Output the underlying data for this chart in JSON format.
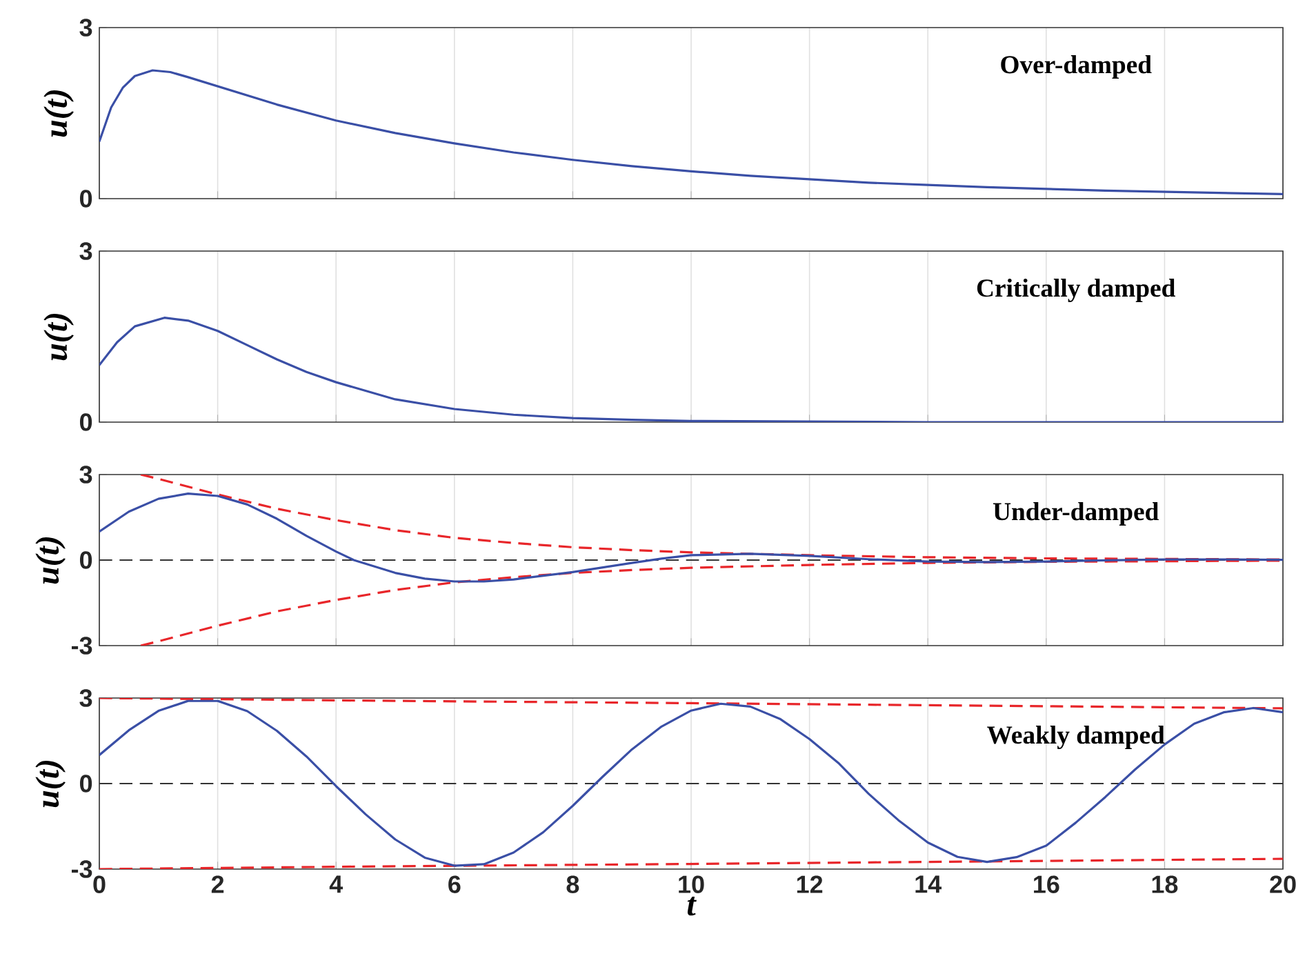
{
  "chart_data": [
    {
      "type": "line",
      "ylabel": "u(t)",
      "annotations": [
        "Over-damped"
      ],
      "xlim": [
        0,
        20
      ],
      "ylim": [
        0,
        3
      ],
      "xticks": [
        0,
        2,
        4,
        6,
        8,
        10,
        12,
        14,
        16,
        18,
        20
      ],
      "yticks": [
        0,
        3
      ],
      "grid": "x",
      "tick_labels": "y",
      "series": [
        {
          "color": "#3a4fa6",
          "line_style": "solid",
          "x": [
            0,
            0.2,
            0.4,
            0.6,
            0.9,
            1.2,
            1.5,
            2,
            3,
            4,
            5,
            6,
            7,
            8,
            9,
            10,
            11,
            12,
            13,
            14,
            15,
            16,
            17,
            18,
            19,
            20
          ],
          "values": [
            1.0,
            1.6,
            1.95,
            2.15,
            2.25,
            2.22,
            2.13,
            1.97,
            1.65,
            1.37,
            1.15,
            0.97,
            0.81,
            0.68,
            0.57,
            0.48,
            0.4,
            0.34,
            0.28,
            0.24,
            0.2,
            0.17,
            0.14,
            0.12,
            0.1,
            0.08
          ]
        }
      ]
    },
    {
      "type": "line",
      "ylabel": "u(t)",
      "annotations": [
        "Critically damped"
      ],
      "xlim": [
        0,
        20
      ],
      "ylim": [
        0,
        3
      ],
      "xticks": [
        0,
        2,
        4,
        6,
        8,
        10,
        12,
        14,
        16,
        18,
        20
      ],
      "yticks": [
        0,
        3
      ],
      "grid": "x",
      "tick_labels": "y",
      "series": [
        {
          "color": "#3a4fa6",
          "line_style": "solid",
          "x": [
            0,
            0.3,
            0.6,
            1.1,
            1.5,
            2,
            2.5,
            3,
            3.5,
            4,
            5,
            6,
            7,
            8,
            9,
            10,
            12,
            14,
            16,
            20
          ],
          "values": [
            1.0,
            1.4,
            1.68,
            1.83,
            1.78,
            1.6,
            1.35,
            1.1,
            0.88,
            0.7,
            0.4,
            0.23,
            0.13,
            0.07,
            0.04,
            0.02,
            0.01,
            0,
            0,
            0
          ]
        }
      ]
    },
    {
      "type": "line",
      "ylabel": "u(t)",
      "annotations": [
        "Under-damped"
      ],
      "xlim": [
        0,
        20
      ],
      "ylim": [
        -3,
        3
      ],
      "xticks": [
        0,
        2,
        4,
        6,
        8,
        10,
        12,
        14,
        16,
        18,
        20
      ],
      "yticks": [
        -3,
        0,
        3
      ],
      "grid": "x",
      "tick_labels": "y",
      "ref_lines": [
        {
          "axis": "y",
          "value": 0,
          "color": "#333333",
          "line_style": "dashed"
        }
      ],
      "series": [
        {
          "color": "#e8262a",
          "line_style": "dashed",
          "x": [
            0.7,
            1,
            2,
            3,
            4,
            5,
            6,
            7,
            8,
            9,
            10,
            12,
            14,
            16,
            18,
            20
          ],
          "values": [
            3.0,
            2.85,
            2.3,
            1.8,
            1.4,
            1.05,
            0.78,
            0.6,
            0.45,
            0.35,
            0.27,
            0.17,
            0.1,
            0.06,
            0.04,
            0.02
          ]
        },
        {
          "color": "#e8262a",
          "line_style": "dashed",
          "x": [
            0.7,
            1,
            2,
            3,
            4,
            5,
            6,
            7,
            8,
            9,
            10,
            12,
            14,
            16,
            18,
            20
          ],
          "values": [
            -3.0,
            -2.85,
            -2.3,
            -1.8,
            -1.4,
            -1.05,
            -0.78,
            -0.6,
            -0.45,
            -0.35,
            -0.27,
            -0.17,
            -0.1,
            -0.06,
            -0.04,
            -0.02
          ]
        },
        {
          "color": "#3a4fa6",
          "line_style": "solid",
          "x": [
            0,
            0.5,
            1,
            1.5,
            2,
            2.5,
            3,
            3.5,
            4,
            4.3,
            5,
            5.5,
            6,
            6.5,
            7,
            8,
            9,
            9.5,
            10,
            11,
            12,
            13,
            14,
            15,
            16,
            17,
            18,
            19,
            20
          ],
          "values": [
            1.0,
            1.7,
            2.15,
            2.33,
            2.25,
            1.95,
            1.45,
            0.85,
            0.3,
            0,
            -0.45,
            -0.65,
            -0.75,
            -0.75,
            -0.68,
            -0.42,
            -0.1,
            0.05,
            0.17,
            0.22,
            0.15,
            0.03,
            -0.05,
            -0.07,
            -0.05,
            -0.01,
            0.02,
            0.02,
            0.01
          ]
        }
      ]
    },
    {
      "type": "line",
      "xlabel": "t",
      "ylabel": "u(t)",
      "annotations": [
        "Weakly damped"
      ],
      "xlim": [
        0,
        20
      ],
      "ylim": [
        -3,
        3
      ],
      "xticks": [
        0,
        2,
        4,
        6,
        8,
        10,
        12,
        14,
        16,
        18,
        20
      ],
      "yticks": [
        -3,
        0,
        3
      ],
      "grid": "x",
      "ref_lines": [
        {
          "axis": "y",
          "value": 0,
          "color": "#333333",
          "line_style": "dashed"
        }
      ],
      "series": [
        {
          "color": "#e8262a",
          "line_style": "dashed",
          "x": [
            0,
            5,
            10,
            15,
            20
          ],
          "values": [
            3.0,
            2.9,
            2.82,
            2.73,
            2.64
          ]
        },
        {
          "color": "#e8262a",
          "line_style": "dashed",
          "x": [
            0,
            5,
            10,
            15,
            20
          ],
          "values": [
            -3.0,
            -2.9,
            -2.82,
            -2.73,
            -2.64
          ]
        },
        {
          "color": "#3a4fa6",
          "line_style": "solid",
          "x": [
            0,
            0.5,
            1,
            1.5,
            2,
            2.5,
            3,
            3.5,
            4,
            4.5,
            5,
            5.5,
            6,
            6.5,
            7,
            7.5,
            8,
            8.5,
            9,
            9.5,
            10,
            10.5,
            11,
            11.5,
            12,
            12.5,
            13,
            13.5,
            14,
            14.5,
            15,
            15.5,
            16,
            16.5,
            17,
            17.5,
            18,
            18.5,
            19,
            19.5,
            20
          ],
          "values": [
            1.0,
            1.87,
            2.55,
            2.9,
            2.9,
            2.54,
            1.85,
            0.95,
            -0.09,
            -1.08,
            -1.96,
            -2.6,
            -2.88,
            -2.83,
            -2.42,
            -1.71,
            -0.78,
            0.23,
            1.2,
            2.0,
            2.56,
            2.8,
            2.7,
            2.27,
            1.56,
            0.7,
            -0.36,
            -1.28,
            -2.07,
            -2.57,
            -2.75,
            -2.58,
            -2.18,
            -1.37,
            -0.47,
            0.49,
            1.37,
            2.1,
            2.5,
            2.65,
            2.5
          ]
        }
      ]
    }
  ]
}
